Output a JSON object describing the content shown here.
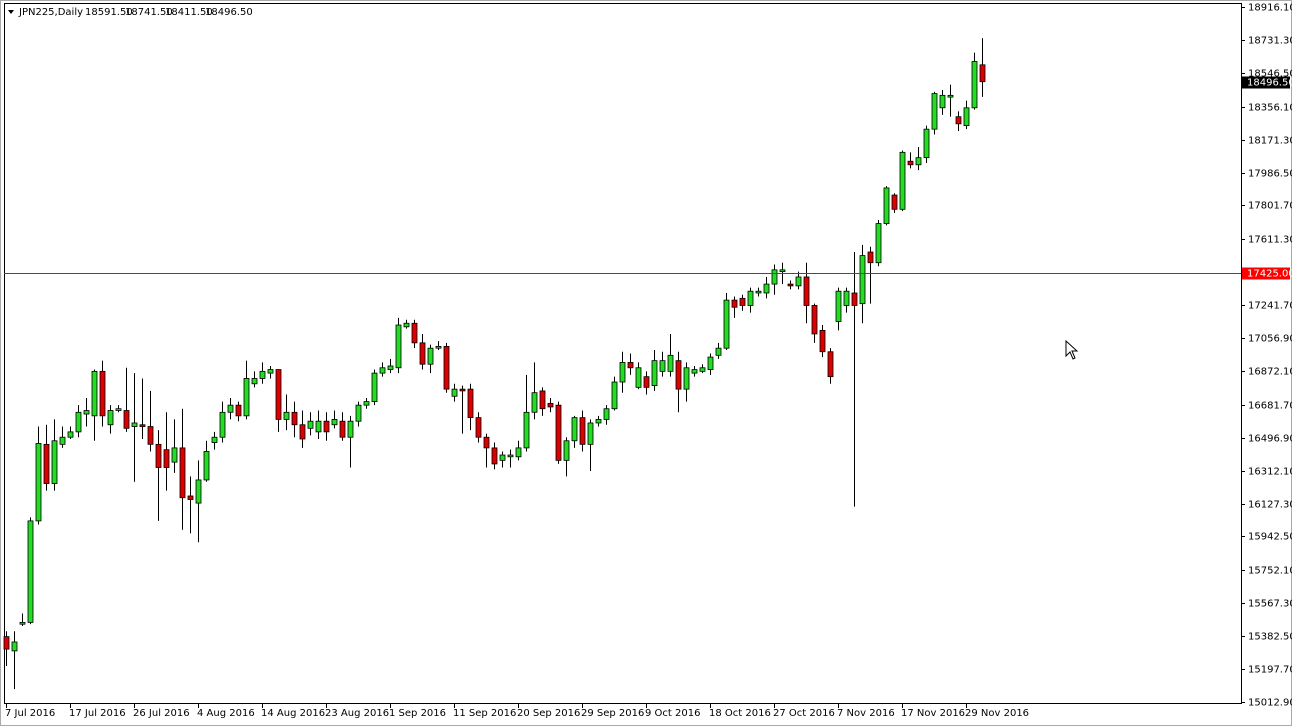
{
  "chart_data": {
    "type": "candlestick",
    "header": {
      "symbol": "JPN225,Daily",
      "ohlc": [
        "18591.50",
        "18741.50",
        "18411.50",
        "18496.50"
      ]
    },
    "categories": [
      "7 Jul 2016",
      null,
      null,
      null,
      null,
      null,
      null,
      null,
      "17 Jul 2016",
      null,
      null,
      null,
      null,
      null,
      null,
      null,
      "26 Jul 2016",
      null,
      null,
      null,
      null,
      null,
      null,
      null,
      "4 Aug 2016",
      null,
      null,
      null,
      null,
      null,
      null,
      null,
      "14 Aug 2016",
      null,
      null,
      null,
      null,
      null,
      null,
      null,
      "23 Aug 2016",
      null,
      null,
      null,
      null,
      null,
      null,
      null,
      "1 Sep 2016",
      null,
      null,
      null,
      null,
      null,
      null,
      null,
      "11 Sep 2016",
      null,
      null,
      null,
      null,
      null,
      null,
      null,
      "20 Sep 2016",
      null,
      null,
      null,
      null,
      null,
      null,
      null,
      "29 Sep 2016",
      null,
      null,
      null,
      null,
      null,
      null,
      null,
      "9 Oct 2016",
      null,
      null,
      null,
      null,
      null,
      null,
      null,
      "18 Oct 2016",
      null,
      null,
      null,
      null,
      null,
      null,
      null,
      "27 Oct 2016",
      null,
      null,
      null,
      null,
      null,
      null,
      null,
      "7 Nov 2016",
      null,
      null,
      null,
      null,
      null,
      null,
      null,
      "17 Nov 2016",
      null,
      null,
      null,
      null,
      null,
      null,
      null,
      "29 Nov 2016",
      null,
      null
    ],
    "open": [
      15380,
      15300,
      15450,
      15460,
      16030,
      16460,
      16240,
      16460,
      16500,
      16530,
      16630,
      16620,
      16870,
      16570,
      16650,
      16650,
      16560,
      16570,
      16560,
      16460,
      16430,
      16360,
      16440,
      16170,
      16130,
      16260,
      16470,
      16500,
      16640,
      16680,
      16620,
      16800,
      16830,
      16860,
      16880,
      16600,
      16640,
      16570,
      16550,
      16530,
      16590,
      16570,
      16590,
      16500,
      16590,
      16680,
      16700,
      16860,
      16880,
      16890,
      17120,
      17140,
      17030,
      16910,
      17000,
      17010,
      16730,
      16770,
      16770,
      16610,
      16500,
      16440,
      16370,
      16390,
      16390,
      16440,
      16640,
      16760,
      16690,
      16680,
      16370,
      16480,
      16610,
      16460,
      16580,
      16600,
      16660,
      16810,
      16920,
      16780,
      16840,
      16790,
      16870,
      16870,
      16930,
      16770,
      16860,
      16870,
      16880,
      16960,
      17000,
      17270,
      17280,
      17240,
      17310,
      17310,
      17360,
      17430,
      17360,
      17350,
      17400,
      17240,
      17100,
      16980,
      17150,
      17240,
      17310,
      17250,
      17540,
      17480,
      17700,
      17860,
      17780,
      18050,
      18030,
      18070,
      18230,
      18350,
      18410,
      18300,
      18250,
      18350,
      18591.5
    ],
    "high": [
      15410,
      15410,
      15510,
      16050,
      16560,
      16570,
      16600,
      16560,
      16560,
      16680,
      16720,
      16880,
      16930,
      16680,
      16680,
      16890,
      16860,
      16830,
      16760,
      16540,
      16640,
      16600,
      16660,
      16280,
      16370,
      16480,
      16530,
      16700,
      16720,
      16700,
      16930,
      16870,
      16920,
      16900,
      16880,
      16740,
      16700,
      16650,
      16640,
      16650,
      16640,
      16650,
      16640,
      16620,
      16700,
      16720,
      16880,
      16920,
      16940,
      17170,
      17160,
      17160,
      17080,
      17020,
      17040,
      17030,
      16800,
      16790,
      16800,
      16640,
      16520,
      16470,
      16420,
      16430,
      16480,
      16850,
      16920,
      16780,
      16720,
      16700,
      16500,
      16620,
      16650,
      16600,
      16620,
      16680,
      16840,
      16980,
      16970,
      16920,
      16870,
      16990,
      16980,
      17080,
      16980,
      16920,
      16900,
      16910,
      16970,
      17030,
      17310,
      17290,
      17300,
      17340,
      17340,
      17400,
      17470,
      17480,
      17380,
      17430,
      17480,
      17250,
      17130,
      17000,
      17340,
      17340,
      17540,
      17580,
      17570,
      17720,
      17910,
      17870,
      18110,
      18100,
      18130,
      18250,
      18440,
      18450,
      18480,
      18330,
      18390,
      18660,
      18741.5
    ],
    "low": [
      15215,
      15085,
      15440,
      15450,
      16010,
      16200,
      16200,
      16440,
      16490,
      16500,
      16560,
      16480,
      16560,
      16520,
      16640,
      16530,
      16250,
      16490,
      16420,
      16030,
      16200,
      16300,
      15980,
      15960,
      15910,
      16250,
      16430,
      16470,
      16600,
      16590,
      16600,
      16780,
      16800,
      16830,
      16530,
      16540,
      16500,
      16440,
      16510,
      16490,
      16480,
      16550,
      16480,
      16330,
      16560,
      16660,
      16680,
      16840,
      16860,
      16860,
      17110,
      17000,
      16880,
      16860,
      16990,
      16750,
      16700,
      16520,
      16540,
      16470,
      16330,
      16320,
      16330,
      16330,
      16370,
      16420,
      16600,
      16620,
      16640,
      16350,
      16280,
      16440,
      16420,
      16310,
      16560,
      16570,
      16650,
      16750,
      16850,
      16770,
      16740,
      16760,
      16840,
      16840,
      16640,
      16700,
      16840,
      16860,
      16850,
      16940,
      16990,
      17170,
      17210,
      17200,
      17290,
      17280,
      17300,
      17360,
      17330,
      17330,
      17140,
      17030,
      16950,
      16800,
      17100,
      17200,
      16110,
      17140,
      17250,
      17460,
      17690,
      17760,
      17770,
      18010,
      18000,
      18040,
      18200,
      18310,
      18300,
      18220,
      18230,
      18340,
      18411.5
    ],
    "close": [
      15310,
      15350,
      15460,
      16030,
      16465,
      16240,
      16480,
      16500,
      16530,
      16640,
      16650,
      16870,
      16620,
      16650,
      16660,
      16550,
      16580,
      16560,
      16460,
      16330,
      16330,
      16440,
      16160,
      16150,
      16260,
      16420,
      16500,
      16640,
      16680,
      16620,
      16830,
      16830,
      16870,
      16880,
      16600,
      16640,
      16570,
      16490,
      16590,
      16590,
      16530,
      16600,
      16500,
      16590,
      16680,
      16700,
      16860,
      16890,
      16900,
      17130,
      17140,
      17030,
      16910,
      17000,
      17010,
      16770,
      16770,
      16760,
      16610,
      16500,
      16440,
      16350,
      16400,
      16400,
      16440,
      16640,
      16750,
      16660,
      16670,
      16370,
      16480,
      16610,
      16460,
      16580,
      16600,
      16660,
      16810,
      16920,
      16890,
      16890,
      16780,
      16930,
      16930,
      16960,
      16770,
      16890,
      16880,
      16890,
      16950,
      17000,
      17270,
      17230,
      17240,
      17320,
      17320,
      17360,
      17440,
      17440,
      17350,
      17400,
      17240,
      17080,
      16980,
      16840,
      17320,
      17320,
      17240,
      17520,
      17480,
      17700,
      17900,
      17780,
      18100,
      18030,
      18070,
      18230,
      18430,
      18420,
      18420,
      18260,
      18350,
      18610,
      18496.5
    ],
    "up_color": "#22dd22",
    "down_color": "#dd0000",
    "ylim": [
      15001.7,
      18933
    ],
    "yticks": [
      {
        "value": 18916.1,
        "label": "18916.10"
      },
      {
        "value": 18731.3,
        "label": "18731.30"
      },
      {
        "value": 18546.5,
        "label": "18546.50"
      },
      {
        "value": 18356.1,
        "label": "18356.10"
      },
      {
        "value": 18171.3,
        "label": "18171.30"
      },
      {
        "value": 17986.5,
        "label": "17986.50"
      },
      {
        "value": 17801.7,
        "label": "17801.70"
      },
      {
        "value": 17611.3,
        "label": "17611.30"
      },
      {
        "value": 17241.7,
        "label": "17241.70"
      },
      {
        "value": 17056.9,
        "label": "17056.90"
      },
      {
        "value": 16872.1,
        "label": "16872.10"
      },
      {
        "value": 16681.7,
        "label": "16681.70"
      },
      {
        "value": 16496.9,
        "label": "16496.90"
      },
      {
        "value": 16312.1,
        "label": "16312.10"
      },
      {
        "value": 16127.3,
        "label": "16127.30"
      },
      {
        "value": 15942.5,
        "label": "15942.50"
      },
      {
        "value": 15752.1,
        "label": "15752.10"
      },
      {
        "value": 15567.3,
        "label": "15567.30"
      },
      {
        "value": 15382.5,
        "label": "15382.50"
      },
      {
        "value": 15197.7,
        "label": "15197.70"
      },
      {
        "value": 15012.9,
        "label": "15012.90"
      }
    ],
    "last_price": {
      "value": 18496.5,
      "label": "18496.50"
    },
    "level_line": {
      "value": 17425,
      "label": "17425.00",
      "color": "#ff0000"
    }
  }
}
